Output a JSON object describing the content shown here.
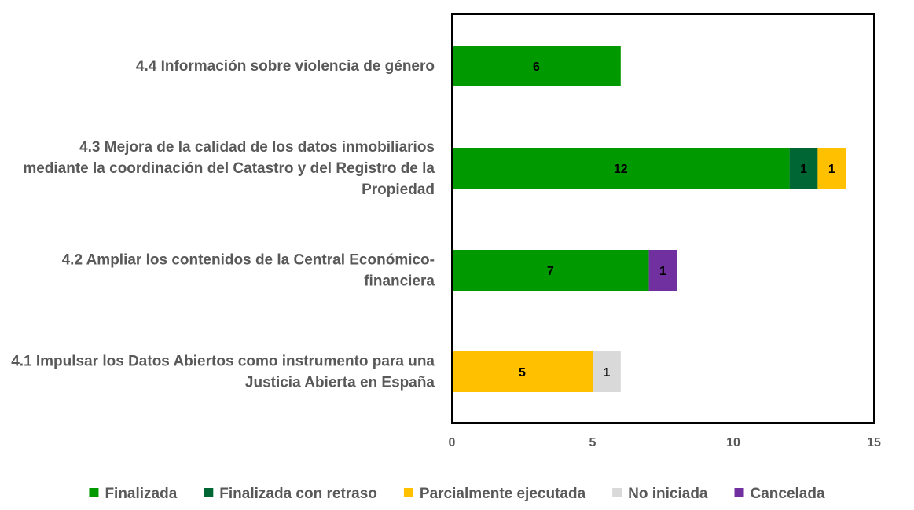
{
  "chart_data": {
    "type": "bar",
    "orientation": "horizontal",
    "stacked": true,
    "categories": [
      [
        "4.4 Información sobre violencia de género"
      ],
      [
        "4.3 Mejora de la calidad de los datos inmobiliarios",
        "mediante la coordinación del Catastro y del Registro de la",
        "Propiedad"
      ],
      [
        "4.2 Ampliar los contenidos de la Central Económico-",
        "financiera"
      ],
      [
        "4.1 Impulsar los Datos Abiertos como instrumento para una",
        "Justicia Abierta en España"
      ]
    ],
    "series": [
      {
        "name": "Finalizada",
        "color": "#009900",
        "values": [
          6,
          12,
          7,
          0
        ]
      },
      {
        "name": "Finalizada con retraso",
        "color": "#006633",
        "values": [
          0,
          1,
          0,
          0
        ]
      },
      {
        "name": "Parcialmente ejecutada",
        "color": "#FFC000",
        "values": [
          0,
          1,
          0,
          5
        ]
      },
      {
        "name": "No iniciada",
        "color": "#D9D9D9",
        "values": [
          0,
          0,
          0,
          1
        ]
      },
      {
        "name": "Cancelada",
        "color": "#7030A0",
        "values": [
          0,
          0,
          1,
          0
        ]
      }
    ],
    "xlim": [
      0,
      15
    ],
    "xticks": [
      "0",
      "5",
      "10",
      "15"
    ],
    "grid": false,
    "legend_position": "bottom",
    "title": "",
    "xlabel": "",
    "ylabel": ""
  }
}
